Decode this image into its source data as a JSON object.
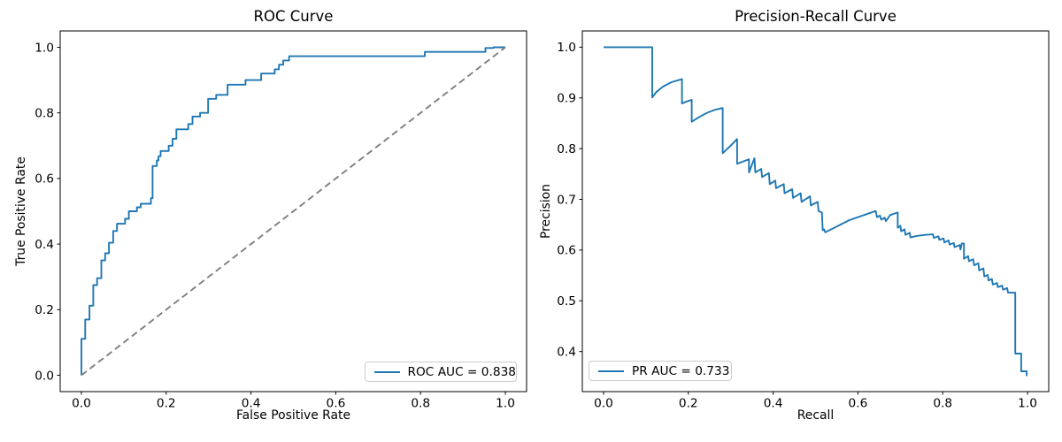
{
  "figure": {
    "background": "#ffffff",
    "curve_color": "#1f77b4",
    "diagonal_color": "#7f7f7f",
    "frame_color": "#000000"
  },
  "chart_data": [
    {
      "type": "line",
      "id": "roc",
      "title": "ROC Curve",
      "xlabel": "False Positive Rate",
      "ylabel": "True Positive Rate",
      "xlim": [
        -0.05,
        1.05
      ],
      "ylim": [
        -0.05,
        1.05
      ],
      "xticks": [
        "0.0",
        "0.2",
        "0.4",
        "0.6",
        "0.8",
        "1.0"
      ],
      "yticks": [
        "0.0",
        "0.2",
        "0.4",
        "0.6",
        "0.8",
        "1.0"
      ],
      "grid": false,
      "legend": {
        "label": "ROC AUC = 0.838",
        "position": "lower right"
      },
      "series": [
        {
          "id": "roc-curve",
          "name": "ROC AUC = 0.838",
          "color": "#1f77b4",
          "style": "solid",
          "points": [
            [
              0,
              0
            ],
            [
              0,
              0.111
            ],
            [
              0.009,
              0.111
            ],
            [
              0.009,
              0.17
            ],
            [
              0.019,
              0.17
            ],
            [
              0.019,
              0.212
            ],
            [
              0.028,
              0.212
            ],
            [
              0.028,
              0.275
            ],
            [
              0.037,
              0.275
            ],
            [
              0.037,
              0.296
            ],
            [
              0.047,
              0.296
            ],
            [
              0.047,
              0.35
            ],
            [
              0.056,
              0.35
            ],
            [
              0.056,
              0.372
            ],
            [
              0.065,
              0.372
            ],
            [
              0.065,
              0.404
            ],
            [
              0.075,
              0.404
            ],
            [
              0.075,
              0.44
            ],
            [
              0.084,
              0.44
            ],
            [
              0.084,
              0.462
            ],
            [
              0.103,
              0.462
            ],
            [
              0.103,
              0.477
            ],
            [
              0.112,
              0.477
            ],
            [
              0.112,
              0.5
            ],
            [
              0.131,
              0.5
            ],
            [
              0.131,
              0.512
            ],
            [
              0.14,
              0.512
            ],
            [
              0.14,
              0.523
            ],
            [
              0.164,
              0.523
            ],
            [
              0.164,
              0.54
            ],
            [
              0.168,
              0.54
            ],
            [
              0.168,
              0.638
            ],
            [
              0.178,
              0.638
            ],
            [
              0.178,
              0.655
            ],
            [
              0.182,
              0.655
            ],
            [
              0.182,
              0.668
            ],
            [
              0.187,
              0.668
            ],
            [
              0.187,
              0.684
            ],
            [
              0.206,
              0.684
            ],
            [
              0.206,
              0.7
            ],
            [
              0.215,
              0.7
            ],
            [
              0.215,
              0.721
            ],
            [
              0.224,
              0.721
            ],
            [
              0.224,
              0.75
            ],
            [
              0.252,
              0.75
            ],
            [
              0.252,
              0.766
            ],
            [
              0.262,
              0.766
            ],
            [
              0.262,
              0.789
            ],
            [
              0.28,
              0.789
            ],
            [
              0.28,
              0.8
            ],
            [
              0.299,
              0.8
            ],
            [
              0.299,
              0.843
            ],
            [
              0.318,
              0.843
            ],
            [
              0.318,
              0.855
            ],
            [
              0.345,
              0.855
            ],
            [
              0.345,
              0.886
            ],
            [
              0.387,
              0.886
            ],
            [
              0.387,
              0.9
            ],
            [
              0.424,
              0.9
            ],
            [
              0.424,
              0.92
            ],
            [
              0.456,
              0.92
            ],
            [
              0.456,
              0.933
            ],
            [
              0.466,
              0.933
            ],
            [
              0.466,
              0.947
            ],
            [
              0.476,
              0.947
            ],
            [
              0.476,
              0.96
            ],
            [
              0.49,
              0.96
            ],
            [
              0.49,
              0.973
            ],
            [
              0.81,
              0.973
            ],
            [
              0.81,
              0.986
            ],
            [
              0.953,
              0.986
            ],
            [
              0.953,
              0.998
            ],
            [
              0.972,
              0.998
            ],
            [
              0.972,
              1
            ],
            [
              1,
              1
            ]
          ]
        },
        {
          "id": "chance-diagonal",
          "name": "chance",
          "color": "#7f7f7f",
          "style": "dashed",
          "points": [
            [
              0,
              0
            ],
            [
              1,
              1
            ]
          ]
        }
      ]
    },
    {
      "type": "line",
      "id": "pr",
      "title": "Precision-Recall Curve",
      "xlabel": "Recall",
      "ylabel": "Precision",
      "xlim": [
        -0.05,
        1.05
      ],
      "ylim": [
        0.321,
        1.032
      ],
      "xticks": [
        "0.0",
        "0.2",
        "0.4",
        "0.6",
        "0.8",
        "1.0"
      ],
      "yticks": [
        "0.4",
        "0.5",
        "0.6",
        "0.7",
        "0.8",
        "0.9",
        "1.0"
      ],
      "grid": false,
      "legend": {
        "label": "PR AUC = 0.733",
        "position": "lower left"
      },
      "series": [
        {
          "id": "pr-curve",
          "name": "PR AUC = 0.733",
          "color": "#1f77b4",
          "style": "solid",
          "points": [
            [
              0,
              1
            ],
            [
              0.115,
              1
            ],
            [
              0.115,
              0.901
            ],
            [
              0.125,
              0.912
            ],
            [
              0.14,
              0.922
            ],
            [
              0.16,
              0.931
            ],
            [
              0.185,
              0.937
            ],
            [
              0.185,
              0.889
            ],
            [
              0.196,
              0.893
            ],
            [
              0.208,
              0.896
            ],
            [
              0.208,
              0.853
            ],
            [
              0.225,
              0.862
            ],
            [
              0.245,
              0.871
            ],
            [
              0.265,
              0.877
            ],
            [
              0.281,
              0.88
            ],
            [
              0.281,
              0.791
            ],
            [
              0.3,
              0.806
            ],
            [
              0.315,
              0.819
            ],
            [
              0.315,
              0.77
            ],
            [
              0.33,
              0.775
            ],
            [
              0.343,
              0.779
            ],
            [
              0.343,
              0.753
            ],
            [
              0.356,
              0.781
            ],
            [
              0.358,
              0.753
            ],
            [
              0.372,
              0.76
            ],
            [
              0.374,
              0.744
            ],
            [
              0.39,
              0.752
            ],
            [
              0.392,
              0.73
            ],
            [
              0.405,
              0.737
            ],
            [
              0.407,
              0.722
            ],
            [
              0.425,
              0.73
            ],
            [
              0.427,
              0.712
            ],
            [
              0.445,
              0.72
            ],
            [
              0.447,
              0.703
            ],
            [
              0.465,
              0.712
            ],
            [
              0.467,
              0.695
            ],
            [
              0.487,
              0.706
            ],
            [
              0.489,
              0.688
            ],
            [
              0.505,
              0.695
            ],
            [
              0.507,
              0.677
            ],
            [
              0.515,
              0.674
            ],
            [
              0.517,
              0.639
            ],
            [
              0.52,
              0.641
            ],
            [
              0.523,
              0.635
            ],
            [
              0.58,
              0.659
            ],
            [
              0.642,
              0.677
            ],
            [
              0.645,
              0.665
            ],
            [
              0.652,
              0.668
            ],
            [
              0.655,
              0.66
            ],
            [
              0.663,
              0.664
            ],
            [
              0.666,
              0.657
            ],
            [
              0.676,
              0.669
            ],
            [
              0.686,
              0.672
            ],
            [
              0.694,
              0.674
            ],
            [
              0.694,
              0.644
            ],
            [
              0.7,
              0.648
            ],
            [
              0.702,
              0.637
            ],
            [
              0.71,
              0.641
            ],
            [
              0.712,
              0.63
            ],
            [
              0.722,
              0.634
            ],
            [
              0.724,
              0.625
            ],
            [
              0.74,
              0.628
            ],
            [
              0.758,
              0.63
            ],
            [
              0.777,
              0.631
            ],
            [
              0.779,
              0.624
            ],
            [
              0.79,
              0.627
            ],
            [
              0.792,
              0.62
            ],
            [
              0.802,
              0.623
            ],
            [
              0.804,
              0.615
            ],
            [
              0.814,
              0.619
            ],
            [
              0.816,
              0.611
            ],
            [
              0.826,
              0.614
            ],
            [
              0.828,
              0.606
            ],
            [
              0.84,
              0.61
            ],
            [
              0.842,
              0.601
            ],
            [
              0.845,
              0.613
            ],
            [
              0.85,
              0.613
            ],
            [
              0.85,
              0.583
            ],
            [
              0.86,
              0.588
            ],
            [
              0.862,
              0.578
            ],
            [
              0.872,
              0.582
            ],
            [
              0.874,
              0.57
            ],
            [
              0.884,
              0.574
            ],
            [
              0.886,
              0.56
            ],
            [
              0.896,
              0.564
            ],
            [
              0.898,
              0.548
            ],
            [
              0.906,
              0.551
            ],
            [
              0.908,
              0.54
            ],
            [
              0.916,
              0.543
            ],
            [
              0.918,
              0.532
            ],
            [
              0.928,
              0.535
            ],
            [
              0.93,
              0.527
            ],
            [
              0.94,
              0.53
            ],
            [
              0.942,
              0.522
            ],
            [
              0.952,
              0.525
            ],
            [
              0.954,
              0.516
            ],
            [
              0.971,
              0.516
            ],
            [
              0.971,
              0.396
            ],
            [
              0.985,
              0.396
            ],
            [
              0.985,
              0.361
            ],
            [
              0.998,
              0.361
            ],
            [
              0.998,
              0.353
            ],
            [
              1,
              0.353
            ]
          ]
        }
      ]
    }
  ]
}
